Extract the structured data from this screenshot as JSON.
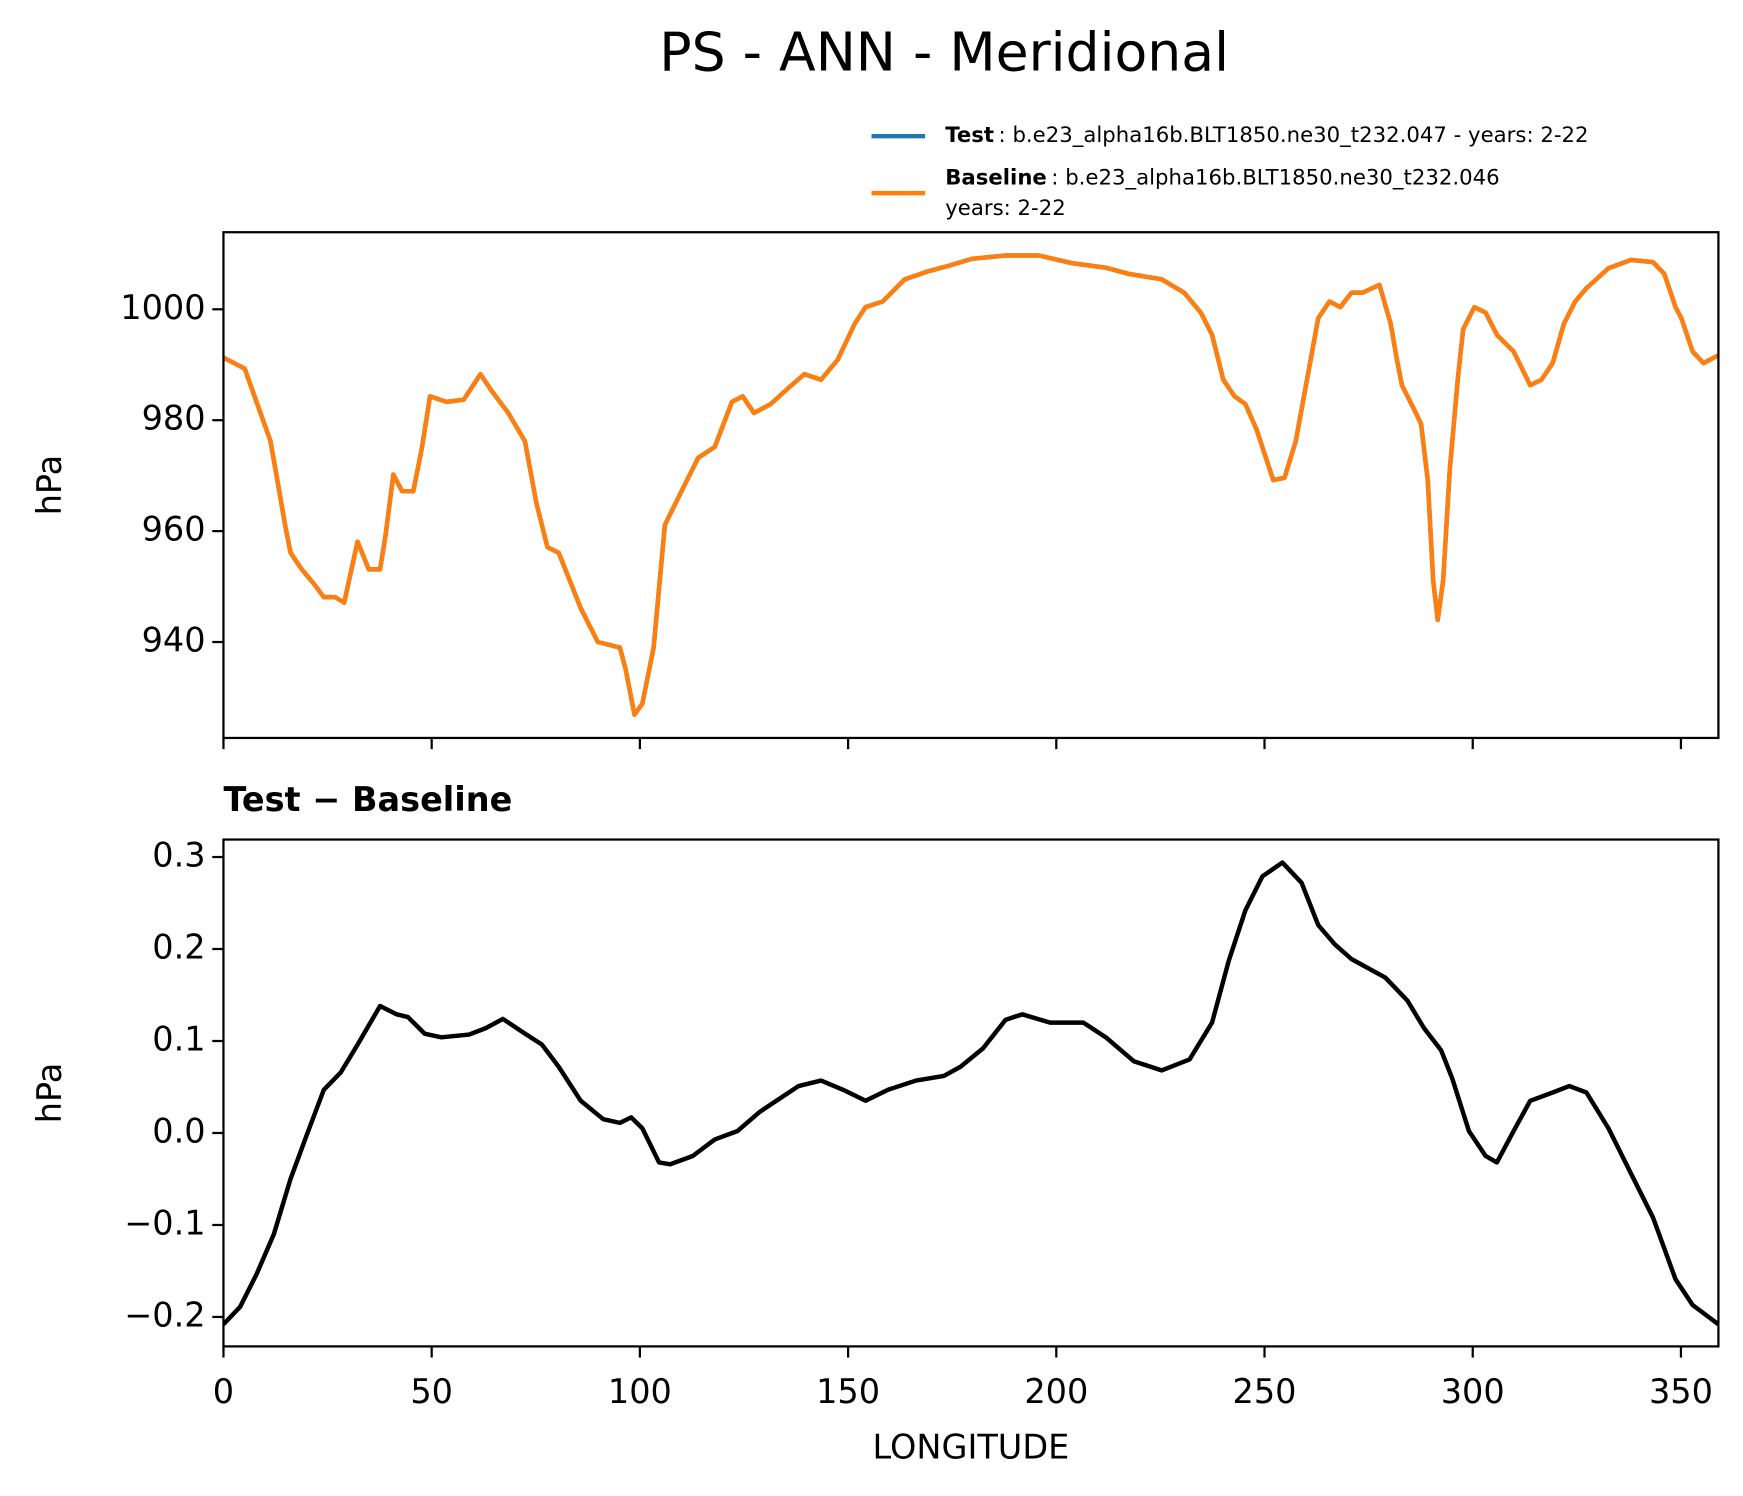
{
  "title": "PS - ANN - Meridional",
  "chart_data": [
    {
      "type": "line",
      "ylabel": "hPa",
      "x": [
        0,
        5.1,
        11.3,
        13.4,
        14.8,
        16.1,
        18.8,
        21.5,
        24.1,
        26.8,
        29.0,
        32.2,
        34.9,
        37.6,
        38.9,
        40.8,
        42.9,
        45.6,
        47.7,
        49.6,
        53.6,
        57.7,
        61.7,
        64.4,
        68.4,
        72.4,
        75.1,
        77.8,
        80.5,
        85.8,
        89.9,
        95.2,
        96.6,
        98.7,
        100.6,
        103.3,
        106.0,
        110.0,
        114.0,
        118.0,
        122.1,
        124.7,
        127.4,
        131.4,
        135.5,
        139.5,
        143.5,
        147.5,
        151.6,
        154.2,
        158.3,
        163.6,
        169.0,
        174.4,
        179.7,
        187.8,
        195.8,
        203.9,
        211.9,
        217.3,
        225.3,
        230.7,
        234.7,
        237.4,
        240.1,
        242.8,
        245.4,
        248.1,
        252.1,
        254.8,
        257.5,
        260.2,
        262.9,
        265.6,
        268.2,
        270.9,
        273.6,
        277.6,
        280.3,
        281.7,
        283.0,
        285.7,
        287.6,
        289.2,
        290.5,
        291.6,
        292.9,
        294.5,
        296.4,
        297.7,
        300.4,
        303.1,
        305.8,
        309.8,
        313.8,
        316.5,
        319.2,
        321.9,
        324.6,
        327.3,
        332.6,
        338.0,
        343.3,
        346.0,
        348.7,
        350.1,
        352.8,
        355.4,
        359.0
      ],
      "series": [
        {
          "name": "Test",
          "description": [
            ": b.e23_alpha16b.BLT1850.ne30_t232.047 - years: 2-22"
          ],
          "color": "#1f77b4",
          "values": [
            991.3,
            989.3,
            976.2,
            967.2,
            961.1,
            956.1,
            953.1,
            950.7,
            948.1,
            948.1,
            947.1,
            958.1,
            953.1,
            953.1,
            959.1,
            970.2,
            967.2,
            967.2,
            975.2,
            984.3,
            983.3,
            983.7,
            988.3,
            985.3,
            981.3,
            976.2,
            965.2,
            957.1,
            956.1,
            946.1,
            940.0,
            939.0,
            935.0,
            926.9,
            928.9,
            939.0,
            961.1,
            967.2,
            973.2,
            975.2,
            983.3,
            984.3,
            981.3,
            982.9,
            985.7,
            988.3,
            987.3,
            990.9,
            997.4,
            1000.4,
            1001.4,
            1005.4,
            1006.8,
            1007.9,
            1009.1,
            1009.7,
            1009.7,
            1008.3,
            1007.5,
            1006.4,
            1005.4,
            1003.0,
            999.4,
            995.4,
            987.3,
            984.3,
            982.9,
            978.3,
            969.2,
            969.6,
            976.2,
            987.3,
            998.4,
            1001.4,
            1000.4,
            1003.0,
            1003.0,
            1004.4,
            997.4,
            991.3,
            986.3,
            982.3,
            979.3,
            969.2,
            951.1,
            944.0,
            951.1,
            971.2,
            987.3,
            996.4,
            1000.4,
            999.4,
            995.4,
            992.4,
            986.3,
            987.3,
            990.3,
            997.4,
            1001.4,
            1003.8,
            1007.4,
            1008.9,
            1008.5,
            1006.4,
            1000.4,
            998.4,
            992.4,
            990.3,
            991.7
          ]
        },
        {
          "name": "Baseline",
          "description": [
            ": b.e23_alpha16b.BLT1850.ne30_t232.046",
            "years: 2-22"
          ],
          "color": "#ff7f0e",
          "values": [
            991.3,
            989.3,
            976.2,
            967.2,
            961.1,
            956.1,
            953.1,
            950.7,
            948.1,
            948.1,
            947.1,
            958.1,
            953.1,
            953.1,
            959.1,
            970.2,
            967.2,
            967.2,
            975.2,
            984.3,
            983.3,
            983.7,
            988.3,
            985.3,
            981.3,
            976.2,
            965.2,
            957.1,
            956.1,
            946.1,
            940.0,
            939.0,
            935.0,
            926.9,
            928.9,
            939.0,
            961.1,
            967.2,
            973.2,
            975.2,
            983.3,
            984.3,
            981.3,
            982.9,
            985.7,
            988.3,
            987.3,
            990.9,
            997.4,
            1000.4,
            1001.4,
            1005.4,
            1006.8,
            1007.9,
            1009.1,
            1009.7,
            1009.7,
            1008.3,
            1007.5,
            1006.4,
            1005.4,
            1003.0,
            999.4,
            995.4,
            987.3,
            984.3,
            982.9,
            978.3,
            969.2,
            969.6,
            976.2,
            987.3,
            998.4,
            1001.4,
            1000.4,
            1003.0,
            1003.0,
            1004.4,
            997.4,
            991.3,
            986.3,
            982.3,
            979.3,
            969.2,
            951.1,
            944.0,
            951.1,
            971.2,
            987.3,
            996.4,
            1000.4,
            999.4,
            995.4,
            992.4,
            986.3,
            987.3,
            990.3,
            997.4,
            1001.4,
            1003.8,
            1007.4,
            1008.9,
            1008.5,
            1006.4,
            1000.4,
            998.4,
            992.4,
            990.3,
            991.7
          ]
        }
      ],
      "xlim": [
        0,
        359
      ],
      "xticks": [
        0,
        50,
        100,
        150,
        200,
        250,
        300,
        350
      ],
      "ylim": [
        922.7,
        1013.9
      ],
      "yticks": [
        940,
        960,
        980,
        1000
      ]
    },
    {
      "type": "line",
      "title": "Test − Baseline",
      "ylabel": "hPa",
      "xlabel": "LONGITUDE",
      "color": "#000000",
      "x": [
        0,
        4.0,
        8.0,
        12.1,
        16.1,
        20.1,
        24.1,
        28.2,
        32.2,
        37.6,
        41.6,
        44.3,
        48.3,
        52.3,
        59.0,
        63.0,
        67.1,
        72.4,
        76.5,
        80.5,
        85.8,
        91.2,
        95.2,
        97.9,
        100.6,
        104.6,
        107.3,
        112.7,
        118.0,
        123.4,
        128.8,
        134.1,
        138.1,
        143.5,
        148.8,
        154.2,
        159.6,
        166.3,
        173.0,
        177.0,
        182.4,
        187.8,
        191.8,
        198.5,
        206.5,
        211.9,
        218.6,
        225.3,
        232.0,
        237.4,
        241.4,
        245.4,
        249.5,
        254.3,
        258.9,
        262.9,
        266.9,
        270.9,
        279.0,
        284.3,
        288.3,
        292.4,
        295.1,
        299.1,
        303.1,
        305.8,
        309.8,
        313.8,
        319.2,
        323.2,
        327.3,
        332.6,
        338.0,
        343.3,
        348.7,
        352.8,
        359.0
      ],
      "values": [
        -0.208,
        -0.189,
        -0.153,
        -0.11,
        -0.05,
        -0.001,
        0.047,
        0.066,
        0.096,
        0.138,
        0.129,
        0.126,
        0.108,
        0.104,
        0.107,
        0.114,
        0.124,
        0.108,
        0.096,
        0.072,
        0.035,
        0.015,
        0.011,
        0.017,
        0.005,
        -0.032,
        -0.034,
        -0.025,
        -0.007,
        0.002,
        0.023,
        0.039,
        0.051,
        0.057,
        0.047,
        0.035,
        0.047,
        0.057,
        0.062,
        0.072,
        0.092,
        0.123,
        0.129,
        0.12,
        0.12,
        0.104,
        0.078,
        0.068,
        0.08,
        0.12,
        0.187,
        0.242,
        0.279,
        0.294,
        0.272,
        0.226,
        0.205,
        0.189,
        0.169,
        0.144,
        0.114,
        0.09,
        0.059,
        0.002,
        -0.025,
        -0.032,
        0.002,
        0.035,
        0.044,
        0.051,
        0.044,
        0.005,
        -0.044,
        -0.092,
        -0.159,
        -0.187,
        -0.208
      ],
      "xlim": [
        0,
        359
      ],
      "xticks": [
        0,
        50,
        100,
        150,
        200,
        250,
        300,
        350
      ],
      "ylim": [
        -0.232,
        0.319
      ],
      "yticks": [
        {
          "value": -0.2,
          "label": "−0.2"
        },
        {
          "value": -0.1,
          "label": "−0.1"
        },
        {
          "value": 0,
          "label": "0.0"
        },
        0.1,
        0.2,
        0.3
      ]
    }
  ]
}
